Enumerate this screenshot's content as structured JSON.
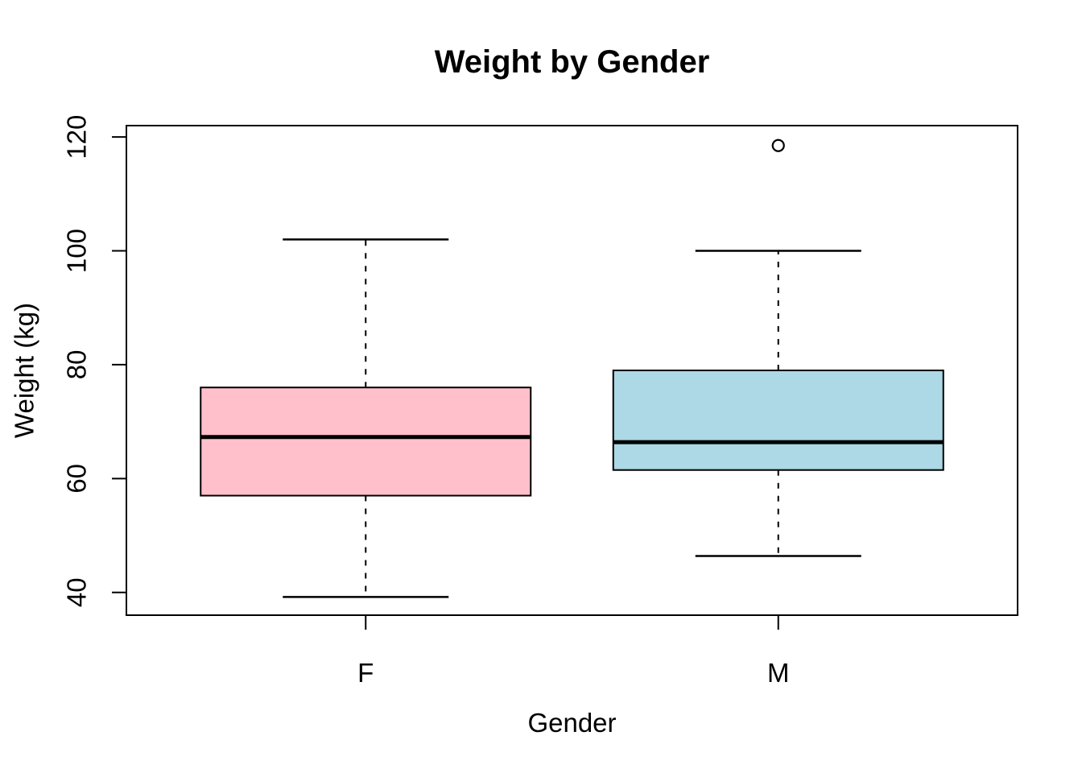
{
  "figure": {
    "background_color": "#FFFFFF",
    "text_color": "#000000"
  },
  "chart_data": {
    "type": "boxplot",
    "title": "Weight by Gender",
    "xlabel": "Gender",
    "ylabel": "Weight (kg)",
    "categories": [
      "F",
      "M"
    ],
    "y_ticks": [
      40,
      60,
      80,
      100,
      120
    ],
    "ylim": [
      36,
      122
    ],
    "grid": false,
    "legend": null,
    "groups": [
      {
        "label": "F",
        "fill_color": "#FFC0CB",
        "whisker_low": 39.2,
        "q1": 57,
        "median": 67.3,
        "q3": 76,
        "whisker_high": 102,
        "outliers": []
      },
      {
        "label": "M",
        "fill_color": "#ADD8E6",
        "whisker_low": 46.4,
        "q1": 61.5,
        "median": 66.4,
        "q3": 79,
        "whisker_high": 100,
        "outliers": [
          118.5
        ]
      }
    ],
    "stroke_color": "#000000"
  }
}
